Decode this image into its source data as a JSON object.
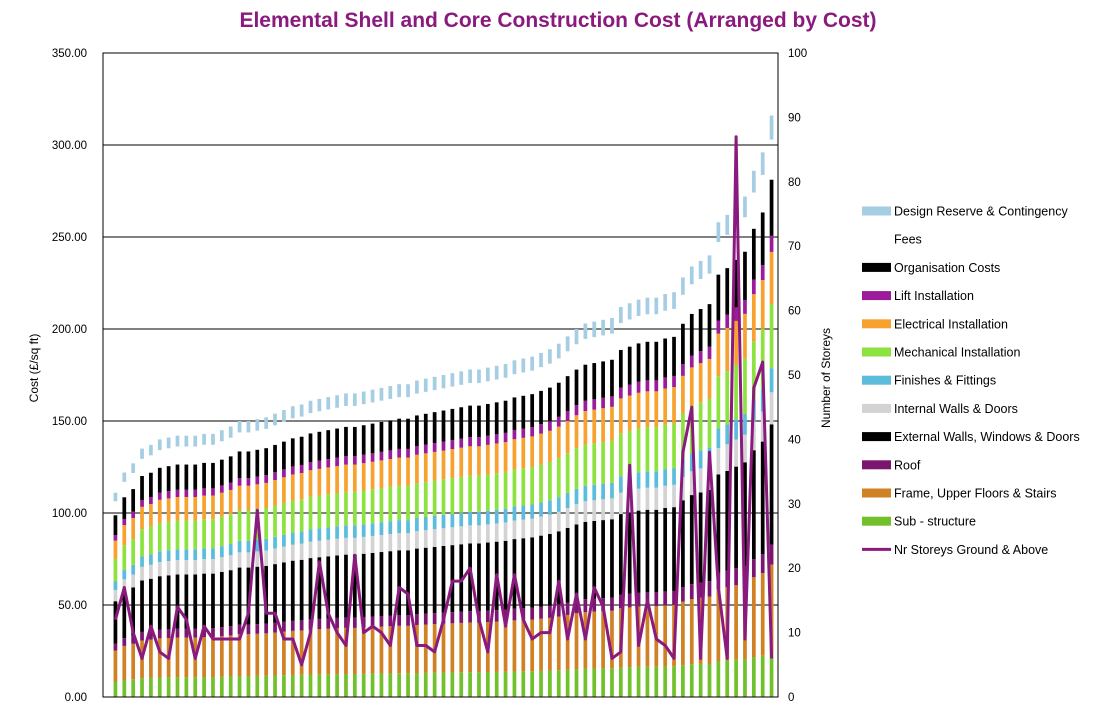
{
  "chart_data": {
    "type": "bar",
    "title": "Elemental Shell and Core Construction Cost (Arranged by Cost)",
    "ylabel": "Cost (£/sq ft)",
    "y2label": "Number of Storeys",
    "ylim": [
      0,
      350
    ],
    "y2lim": [
      0,
      100
    ],
    "yticks": [
      "0.00",
      "50.00",
      "100.00",
      "150.00",
      "200.00",
      "250.00",
      "300.00",
      "350.00"
    ],
    "y2ticks": [
      "0",
      "10",
      "20",
      "30",
      "40",
      "50",
      "60",
      "70",
      "80",
      "90",
      "100"
    ],
    "grid": true,
    "legend_position": "right",
    "stack_order": [
      "Sub - structure",
      "Frame, Upper Floors & Stairs",
      "Roof",
      "External Walls,  Windows & Doors",
      "Internal Walls  & Doors",
      "Finishes & Fittings",
      "Mechanical Installation",
      "Electrical Installation",
      "Lift Installation",
      "Organisation Costs",
      "Fees",
      "Design Reserve & Contingency"
    ],
    "legend": [
      {
        "name": "Design Reserve & Contingency",
        "color": "#a6cee3"
      },
      {
        "name": "Fees",
        "color": "#ffffff"
      },
      {
        "name": "Organisation Costs",
        "color": "#000000"
      },
      {
        "name": "Lift Installation",
        "color": "#9b1b9b"
      },
      {
        "name": "Electrical Installation",
        "color": "#f7a22e"
      },
      {
        "name": "Mechanical Installation",
        "color": "#8ee23f"
      },
      {
        "name": "Finishes & Fittings",
        "color": "#5bbcdc"
      },
      {
        "name": "Internal Walls  & Doors",
        "color": "#d3d3d3"
      },
      {
        "name": "External Walls,  Windows & Doors",
        "color": "#000000"
      },
      {
        "name": "Roof",
        "color": "#7a1670"
      },
      {
        "name": "Frame, Upper Floors & Stairs",
        "color": "#cf8124"
      },
      {
        "name": "Sub - structure",
        "color": "#72c02c"
      },
      {
        "name": "Nr Storeys Ground & Above",
        "color": "#8b1a7e",
        "kind": "line"
      }
    ],
    "totals": [
      111,
      122,
      127,
      135,
      137,
      140,
      141,
      142,
      142,
      142,
      143,
      143,
      145,
      147,
      150,
      150,
      151,
      152,
      154,
      156,
      158,
      159,
      161,
      162,
      163,
      164,
      165,
      165,
      166,
      167,
      168,
      169,
      170,
      170,
      172,
      173,
      174,
      175,
      176,
      177,
      178,
      178,
      179,
      180,
      181,
      183,
      184,
      185,
      187,
      189,
      192,
      196,
      200,
      203,
      204,
      205,
      206,
      212,
      214,
      216,
      217,
      217,
      219,
      220,
      228,
      234,
      237,
      240,
      258,
      262,
      267,
      272,
      286,
      296,
      316
    ],
    "storeys": [
      12,
      17,
      10,
      6,
      11,
      7,
      6,
      14,
      12,
      6,
      11,
      9,
      9,
      9,
      9,
      13,
      29,
      13,
      13,
      9,
      9,
      5,
      10,
      21,
      13,
      10,
      8,
      22,
      10,
      11,
      10,
      8,
      17,
      16,
      8,
      8,
      7,
      12,
      18,
      18,
      20,
      12,
      7,
      19,
      11,
      19,
      12,
      9,
      10,
      10,
      18,
      9,
      16,
      9,
      17,
      14,
      6,
      7,
      36,
      8,
      15,
      9,
      8,
      6,
      38,
      45,
      6,
      38,
      17,
      6,
      87,
      9,
      48,
      52,
      6
    ]
  }
}
